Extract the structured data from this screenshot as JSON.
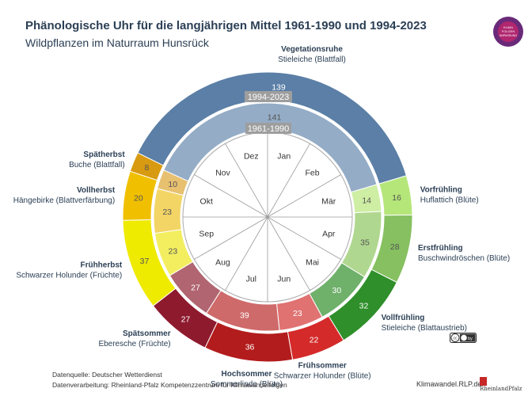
{
  "header": {
    "title": "Phänologische Uhr für die langjährigen Mittel 1961-1990 und 1994-2023",
    "subtitle": "Wildpflanzen im Naturraum Hunsrück"
  },
  "chart_data": {
    "type": "pie",
    "subtype": "phenological clock (two concentric rings)",
    "unit": "days",
    "rings": [
      {
        "label": "1994-2023",
        "ring": "outer"
      },
      {
        "label": "1961-1990",
        "ring": "inner"
      }
    ],
    "months": [
      "Jan",
      "Feb",
      "Mär",
      "Apr",
      "Mai",
      "Jun",
      "Jul",
      "Aug",
      "Sep",
      "Okt",
      "Nov",
      "Dez"
    ],
    "phases": [
      {
        "name": "Vorfrühling",
        "indicator": "Huflattich (Blüte)",
        "outer": 16,
        "inner": 14,
        "color_outer": "#b5e67a",
        "color_inner": "#cdeea3",
        "label_side": "right"
      },
      {
        "name": "Erstfrühling",
        "indicator": "Buschwindröschen (Blüte)",
        "outer": 28,
        "inner": 35,
        "color_outer": "#86c060",
        "color_inner": "#b0d78f",
        "label_side": "right"
      },
      {
        "name": "Vollfrühling",
        "indicator": "Stieleiche (Blattaustrieb)",
        "outer": 32,
        "inner": 30,
        "color_outer": "#2f8f2a",
        "color_inner": "#6fb06a",
        "label_side": "right"
      },
      {
        "name": "Frühsommer",
        "indicator": "Schwarzer Holunder (Blüte)",
        "outer": 22,
        "inner": 23,
        "color_outer": "#d42a2a",
        "color_inner": "#e07272",
        "label_side": "right"
      },
      {
        "name": "Hochsommer",
        "indicator": "Sommerlinde (Blüte)",
        "outer": 36,
        "inner": 39,
        "color_outer": "#b31c1c",
        "color_inner": "#cf6a6a",
        "label_side": "left"
      },
      {
        "name": "Spätsommer",
        "indicator": "Eberesche (Früchte)",
        "outer": 27,
        "inner": 27,
        "color_outer": "#8e1a2e",
        "color_inner": "#b06570",
        "label_side": "left"
      },
      {
        "name": "Frühherbst",
        "indicator": "Schwarzer Holunder (Früchte)",
        "outer": 37,
        "inner": 23,
        "color_outer": "#eeea00",
        "color_inner": "#f2ee60",
        "label_side": "left"
      },
      {
        "name": "Vollherbst",
        "indicator": "Hängebirke (Blattverfärbung)",
        "outer": 20,
        "inner": 23,
        "color_outer": "#f0c000",
        "color_inner": "#f3d566",
        "label_side": "left"
      },
      {
        "name": "Spätherbst",
        "indicator": "Buche (Blattfall)",
        "outer": 8,
        "inner": 10,
        "color_outer": "#d89a10",
        "color_inner": "#e7c070",
        "label_side": "left"
      },
      {
        "name": "Vegetationsruhe",
        "indicator": "Stieleiche (Blattfall)",
        "outer": 139,
        "inner": 141,
        "color_outer": "#5b7fa6",
        "color_inner": "#94acc6",
        "label_side": "top"
      }
    ]
  },
  "footer": {
    "source": "Datenquelle: Deutscher Wetterdienst",
    "processing": "Datenverarbeitung: Rheinland-Pfalz Kompetenzzentrum für Klimawandelfolgen",
    "site": "Klimawandel.RLP.de"
  },
  "logos": {
    "top_right_text": "KLIMA FOLGEN ANPASSUNG",
    "license_text": "cc by",
    "rlp_text": "RheinlandPfalz"
  }
}
